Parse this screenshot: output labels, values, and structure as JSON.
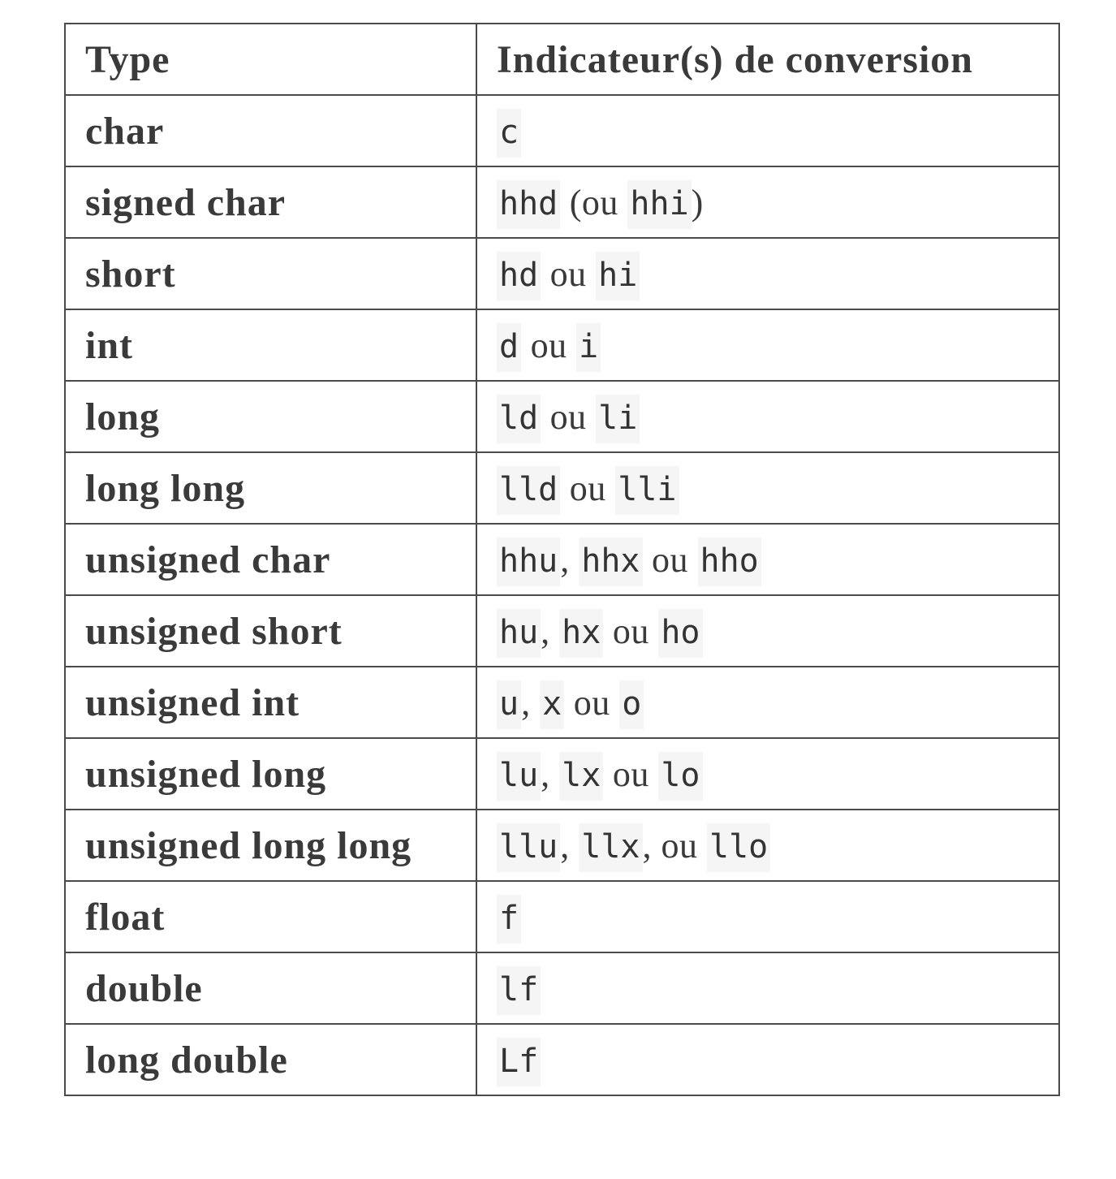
{
  "table": {
    "headers": [
      "Type",
      "Indicateur(s) de conversion"
    ],
    "rows": [
      {
        "type": "char",
        "spec": [
          {
            "code": "c"
          }
        ]
      },
      {
        "type": "signed char",
        "spec": [
          {
            "code": "hhd"
          },
          {
            "text": " (ou "
          },
          {
            "code": "hhi"
          },
          {
            "text": ")"
          }
        ]
      },
      {
        "type": "short",
        "spec": [
          {
            "code": "hd"
          },
          {
            "text": " ou "
          },
          {
            "code": "hi"
          }
        ]
      },
      {
        "type": "int",
        "spec": [
          {
            "code": "d"
          },
          {
            "text": " ou "
          },
          {
            "code": "i"
          }
        ]
      },
      {
        "type": "long",
        "spec": [
          {
            "code": "ld"
          },
          {
            "text": " ou "
          },
          {
            "code": "li"
          }
        ]
      },
      {
        "type": "long long",
        "spec": [
          {
            "code": "lld"
          },
          {
            "text": " ou "
          },
          {
            "code": "lli"
          }
        ]
      },
      {
        "type": "unsigned char",
        "spec": [
          {
            "code": "hhu"
          },
          {
            "text": ", "
          },
          {
            "code": "hhx"
          },
          {
            "text": " ou "
          },
          {
            "code": "hho"
          }
        ]
      },
      {
        "type": "unsigned short",
        "spec": [
          {
            "code": "hu"
          },
          {
            "text": ", "
          },
          {
            "code": "hx"
          },
          {
            "text": " ou "
          },
          {
            "code": "ho"
          }
        ]
      },
      {
        "type": "unsigned int",
        "spec": [
          {
            "code": "u"
          },
          {
            "text": ", "
          },
          {
            "code": "x"
          },
          {
            "text": " ou "
          },
          {
            "code": "o"
          }
        ]
      },
      {
        "type": "unsigned long",
        "spec": [
          {
            "code": "lu"
          },
          {
            "text": ", "
          },
          {
            "code": "lx"
          },
          {
            "text": " ou "
          },
          {
            "code": "lo"
          }
        ]
      },
      {
        "type": "unsigned long long",
        "spec": [
          {
            "code": "llu"
          },
          {
            "text": ", "
          },
          {
            "code": "llx"
          },
          {
            "text": ", ou "
          },
          {
            "code": "llo"
          }
        ]
      },
      {
        "type": "float",
        "spec": [
          {
            "code": "f"
          }
        ]
      },
      {
        "type": "double",
        "spec": [
          {
            "code": "lf"
          }
        ]
      },
      {
        "type": "long double",
        "spec": [
          {
            "code": "Lf"
          }
        ]
      }
    ]
  }
}
